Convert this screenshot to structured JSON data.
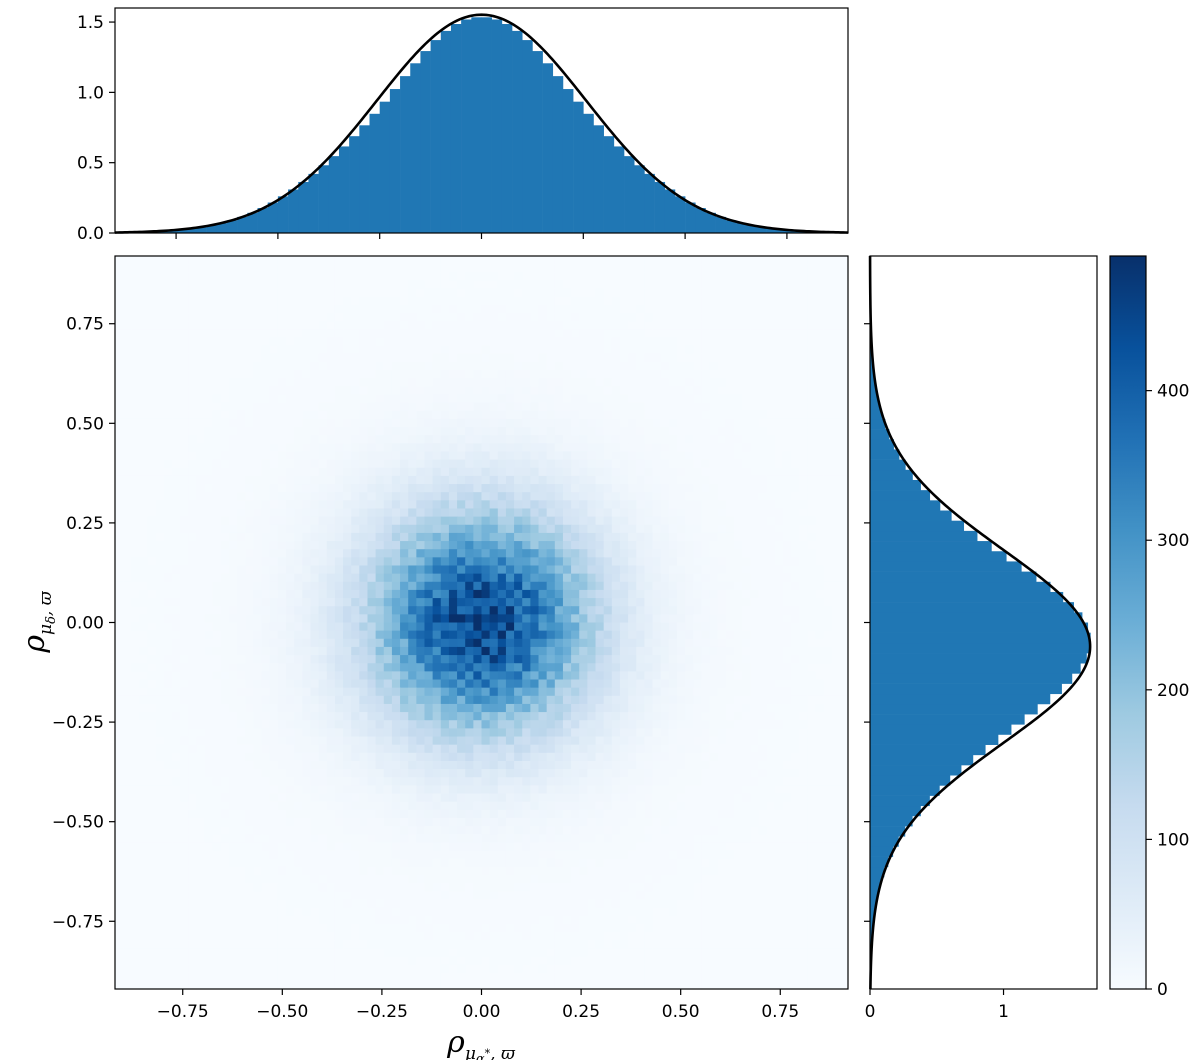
{
  "chart_data": [
    {
      "panel": "top",
      "type": "histogram",
      "x_source": "x",
      "xlim": [
        -0.9,
        0.9
      ],
      "ylim": [
        0,
        1.6
      ],
      "yticks": [
        0.0,
        0.5,
        1.0,
        1.5
      ],
      "ytick_labels": [
        "0.0",
        "0.5",
        "1.0",
        "1.5"
      ],
      "bar_color": "#2077b4",
      "curve_color": "#000000",
      "curve": {
        "model": "normal",
        "mu": 0.0,
        "sigma": 0.257
      }
    },
    {
      "panel": "main",
      "type": "heatmap",
      "colormap": "Blues",
      "bins": 90,
      "peak_count": 450,
      "spread_x": 0.19,
      "spread_y": 0.19,
      "xlim": [
        -0.92,
        0.92
      ],
      "ylim": [
        -0.92,
        0.92
      ],
      "xticks": [
        -0.75,
        -0.5,
        -0.25,
        0.0,
        0.25,
        0.5,
        0.75
      ],
      "xtick_labels": [
        "−0.75",
        "−0.50",
        "−0.25",
        "0.00",
        "0.25",
        "0.50",
        "0.75"
      ],
      "yticks": [
        -0.75,
        -0.5,
        -0.25,
        0.0,
        0.25,
        0.5,
        0.75
      ],
      "ytick_labels": [
        "−0.75",
        "−0.50",
        "−0.25",
        "0.00",
        "0.25",
        "0.50",
        "0.75"
      ],
      "xlabel": "ρμα*, ϖ",
      "ylabel": "ρμδ, ϖ"
    },
    {
      "panel": "right",
      "type": "histogram",
      "orientation": "horizontal",
      "ylim": [
        -0.92,
        0.92
      ],
      "xlim": [
        0,
        1.7
      ],
      "xticks": [
        0,
        1
      ],
      "xtick_labels": [
        "0",
        "1"
      ],
      "bar_color": "#2077b4",
      "curve_color": "#000000",
      "curve": {
        "model": "normal",
        "mu": -0.06,
        "sigma": 0.242
      }
    },
    {
      "panel": "colorbar",
      "type": "colorbar",
      "range": [
        0,
        490
      ],
      "ticks": [
        0,
        100,
        200,
        300,
        400
      ],
      "tick_labels": [
        "0",
        "100",
        "200",
        "300",
        "400"
      ],
      "colormap": "Blues"
    }
  ]
}
